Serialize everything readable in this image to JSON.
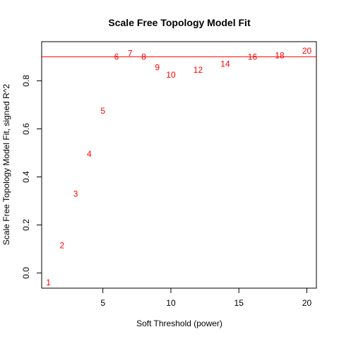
{
  "chart_data": {
    "type": "scatter",
    "title": "Scale Free Topology Model Fit",
    "xlabel": "Soft Threshold (power)",
    "ylabel": "Scale Free Topology Model Fit, signed R^2",
    "xlim": [
      0.5,
      20.7
    ],
    "ylim": [
      -0.063,
      0.963
    ],
    "x_ticks": [
      5,
      10,
      15,
      20
    ],
    "y_ticks": [
      0.0,
      0.2,
      0.4,
      0.6,
      0.8
    ],
    "y_tick_labels": [
      "0.0",
      "0.2",
      "0.4",
      "0.6",
      "0.8"
    ],
    "point_color": "#ff0000",
    "reference_line": {
      "y": 0.9,
      "color": "#ff0000"
    },
    "points": [
      {
        "x": 1,
        "y": -0.04,
        "label": "1"
      },
      {
        "x": 2,
        "y": 0.115,
        "label": "2"
      },
      {
        "x": 3,
        "y": 0.33,
        "label": "3"
      },
      {
        "x": 4,
        "y": 0.495,
        "label": "4"
      },
      {
        "x": 5,
        "y": 0.675,
        "label": "5"
      },
      {
        "x": 6,
        "y": 0.9,
        "label": "6"
      },
      {
        "x": 7,
        "y": 0.915,
        "label": "7"
      },
      {
        "x": 8,
        "y": 0.9,
        "label": "8"
      },
      {
        "x": 9,
        "y": 0.855,
        "label": "9"
      },
      {
        "x": 10,
        "y": 0.825,
        "label": "10"
      },
      {
        "x": 12,
        "y": 0.845,
        "label": "12"
      },
      {
        "x": 14,
        "y": 0.87,
        "label": "14"
      },
      {
        "x": 16,
        "y": 0.9,
        "label": "16"
      },
      {
        "x": 18,
        "y": 0.905,
        "label": "18"
      },
      {
        "x": 20,
        "y": 0.925,
        "label": "20"
      }
    ]
  }
}
